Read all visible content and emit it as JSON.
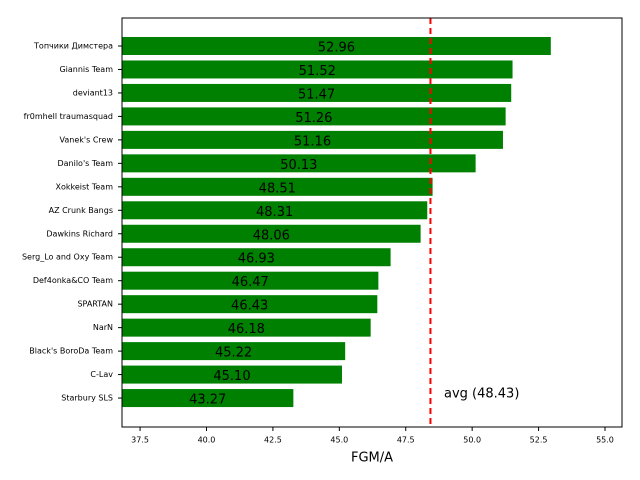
{
  "chart_data": {
    "type": "barh",
    "categories": [
      "Топчики Димстера",
      "Giannis Team",
      "deviant13",
      "fr0mhell traumasquad",
      "Vanek's Crew",
      "Danilo's Team",
      "Xokkeist Team",
      "AZ Crunk Bangs",
      "Dawkins Richard",
      "Serg_Lo and Oxy Team",
      "Def4onka&CO Team",
      "SPARTAN",
      "NarN",
      "Black's BoroDa Team",
      "C-Lav",
      "Starbury SLS"
    ],
    "values": [
      52.96,
      51.52,
      51.47,
      51.26,
      51.16,
      50.13,
      48.51,
      48.31,
      48.06,
      46.93,
      46.47,
      46.43,
      46.18,
      45.22,
      45.1,
      43.27
    ],
    "value_labels": [
      "52.96",
      "51.52",
      "51.47",
      "51.26",
      "51.16",
      "50.13",
      "48.51",
      "48.31",
      "48.06",
      "46.93",
      "46.47",
      "46.43",
      "46.18",
      "45.22",
      "45.10",
      "43.27"
    ],
    "color": "#008000",
    "xlabel": "FGM/A",
    "xlim": [
      36.82,
      55.64
    ],
    "xticks": [
      {
        "value": 37.5,
        "label": "37.5"
      },
      {
        "value": 40,
        "label": "40.0"
      },
      {
        "value": 42.5,
        "label": "42.5"
      },
      {
        "value": 45,
        "label": "45.0"
      },
      {
        "value": 47.5,
        "label": "47.5"
      },
      {
        "value": 50,
        "label": "50.0"
      },
      {
        "value": 52.5,
        "label": "52.5"
      },
      {
        "value": 55,
        "label": "55.0"
      }
    ],
    "avg_line": {
      "value": 48.43,
      "label": "avg (48.43)",
      "color": "#ff0000"
    }
  }
}
